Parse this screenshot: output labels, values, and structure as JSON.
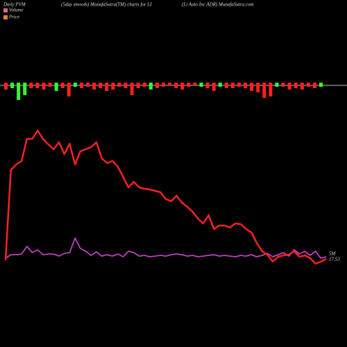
{
  "chart_data": {
    "type": "line",
    "title": "Daily PVM",
    "subtitle": "(5day smooth) MunafaSutra(TM) charts for LI",
    "source": "(Li  Auto  Inc ADR) MunafaSutra.com",
    "ylim": [
      0,
      400
    ],
    "series": [
      {
        "name": "Volume",
        "color": "#c040c0",
        "legend_color": "#e06090",
        "values": [
          28,
          33,
          33,
          34,
          45,
          36,
          40,
          33,
          34,
          34,
          31,
          35,
          36,
          57,
          42,
          38,
          32,
          37,
          31,
          33,
          31,
          34,
          30,
          38,
          36,
          31,
          32,
          30,
          31,
          32,
          31,
          33,
          34,
          33,
          31,
          32,
          30,
          31,
          32,
          33,
          31,
          32,
          31,
          30,
          32,
          31,
          33,
          30,
          32,
          35,
          30,
          33,
          36,
          31,
          40,
          34,
          38,
          32,
          38,
          28,
          30
        ]
      },
      {
        "name": "Price",
        "color": "#ff2020",
        "legend_color": "#e08030",
        "values": [
          25,
          155,
          163,
          168,
          200,
          200,
          212,
          200,
          192,
          185,
          195,
          178,
          193,
          163,
          182,
          185,
          188,
          195,
          172,
          165,
          168,
          160,
          145,
          130,
          138,
          130,
          128,
          127,
          125,
          123,
          113,
          110,
          118,
          108,
          102,
          95,
          85,
          78,
          90,
          70,
          75,
          75,
          72,
          78,
          77,
          70,
          65,
          50,
          38,
          33,
          23,
          30,
          32,
          33,
          38,
          30,
          32,
          28,
          20,
          23,
          27
        ]
      }
    ],
    "volume_bars": {
      "values": [
        10,
        8,
        25,
        18,
        8,
        8,
        10,
        6,
        12,
        8,
        20,
        6,
        8,
        6,
        10,
        8,
        12,
        10,
        6,
        8,
        18,
        8,
        6,
        10,
        8,
        6,
        4,
        8,
        10,
        6,
        4,
        6,
        8,
        12,
        6,
        8,
        8,
        6,
        8,
        12,
        14,
        22,
        20,
        6,
        6,
        10,
        8,
        10,
        6,
        8,
        6
      ],
      "colors": [
        "#ff2020",
        "#33ff33",
        "#33ff33",
        "#33ff33",
        "#ff2020",
        "#ff2020",
        "#ff2020",
        "#ff2020",
        "#33ff33",
        "#ff2020",
        "#ff2020",
        "#33ff33",
        "#ff2020",
        "#ff2020",
        "#ff2020",
        "#ff2020",
        "#ff2020",
        "#ff2020",
        "#ff2020",
        "#ff2020",
        "#ff2020",
        "#ff2020",
        "#ff2020",
        "#33ff33",
        "#ff2020",
        "#ff2020",
        "#ff2020",
        "#ff2020",
        "#ff2020",
        "#ff2020",
        "#ff2020",
        "#33ff33",
        "#ff2020",
        "#ff2020",
        "#33ff33",
        "#ff2020",
        "#ff2020",
        "#ff2020",
        "#ff2020",
        "#ff2020",
        "#ff2020",
        "#ff2020",
        "#ff2020",
        "#33ff33",
        "#ff2020",
        "#ff2020",
        "#ff2020",
        "#ff2020",
        "#ff2020",
        "#ff2020",
        "#33ff33"
      ]
    },
    "annotation": {
      "volume": "5M",
      "price": "17.53"
    }
  }
}
